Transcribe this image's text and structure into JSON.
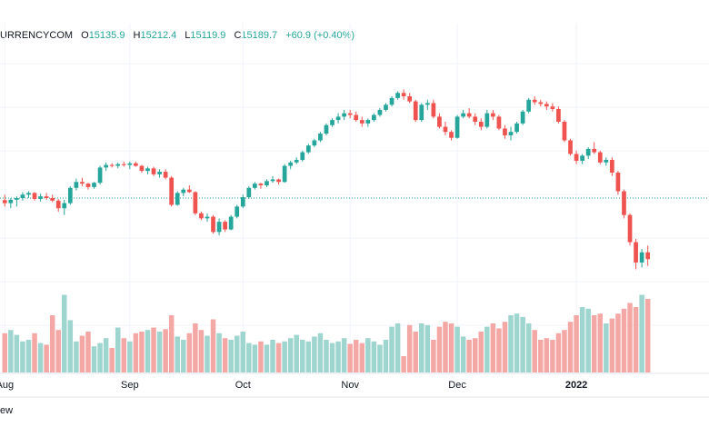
{
  "legend": {
    "symbol": "URRENCYCOM",
    "open_key": "O",
    "open": "15135.9",
    "high_key": "H",
    "high": "15212.4",
    "low_key": "L",
    "low": "15119.9",
    "close_key": "C",
    "close": "15189.7",
    "change": "+60.9 (+0.40%)"
  },
  "footer_text": "ew",
  "colors": {
    "up": "#26a69a",
    "down": "#ef5350",
    "vol_up": "#9fd5cf",
    "vol_down": "#f4a8a6",
    "grid": "#f0f3fa",
    "ref_line": "#26a69a"
  },
  "chart_data": {
    "type": "candlestick",
    "xlabel": "",
    "ylabel": "",
    "x_ticks": [
      {
        "label": "Aug",
        "index": 0,
        "bold": false
      },
      {
        "label": "Sep",
        "index": 21,
        "bold": false
      },
      {
        "label": "Oct",
        "index": 40,
        "bold": false
      },
      {
        "label": "Nov",
        "index": 58,
        "bold": false
      },
      {
        "label": "Dec",
        "index": 76,
        "bold": false
      },
      {
        "label": "2022",
        "index": 96,
        "bold": true
      }
    ],
    "reference_price": 15000,
    "ylim": [
      14400,
      15900
    ],
    "volume_max": 100,
    "candles": [
      [
        14988,
        15020,
        14950,
        14970,
        48
      ],
      [
        14970,
        15000,
        14940,
        14990,
        52
      ],
      [
        14990,
        15010,
        14950,
        15000,
        46
      ],
      [
        15000,
        15035,
        14985,
        15020,
        38
      ],
      [
        15020,
        15040,
        15000,
        15030,
        40
      ],
      [
        15030,
        15035,
        14985,
        14995,
        48
      ],
      [
        14995,
        15025,
        14980,
        15010,
        36
      ],
      [
        15010,
        15030,
        14990,
        15000,
        34
      ],
      [
        15000,
        15020,
        14975,
        14985,
        70
      ],
      [
        14985,
        14995,
        14920,
        14940,
        52
      ],
      [
        14940,
        14990,
        14900,
        14970,
        95
      ],
      [
        14970,
        15070,
        14960,
        15060,
        64
      ],
      [
        15060,
        15115,
        15045,
        15095,
        38
      ],
      [
        15095,
        15120,
        15070,
        15085,
        45
      ],
      [
        15085,
        15090,
        15050,
        15065,
        50
      ],
      [
        15065,
        15095,
        15055,
        15090,
        32
      ],
      [
        15090,
        15190,
        15080,
        15180,
        36
      ],
      [
        15180,
        15210,
        15160,
        15195,
        42
      ],
      [
        15195,
        15205,
        15180,
        15190,
        30
      ],
      [
        15190,
        15210,
        15175,
        15200,
        55
      ],
      [
        15200,
        15215,
        15185,
        15195,
        42
      ],
      [
        15195,
        15215,
        15170,
        15205,
        38
      ],
      [
        15205,
        15215,
        15185,
        15190,
        48
      ],
      [
        15190,
        15195,
        15150,
        15160,
        50
      ],
      [
        15160,
        15185,
        15140,
        15175,
        52
      ],
      [
        15175,
        15185,
        15130,
        15140,
        55
      ],
      [
        15140,
        15170,
        15120,
        15155,
        50
      ],
      [
        15155,
        15170,
        15110,
        15120,
        53
      ],
      [
        15120,
        15130,
        14950,
        14960,
        70
      ],
      [
        14960,
        15040,
        14955,
        15030,
        44
      ],
      [
        15030,
        15060,
        15010,
        15050,
        40
      ],
      [
        15050,
        15075,
        15030,
        15035,
        48
      ],
      [
        15035,
        15040,
        14900,
        14910,
        60
      ],
      [
        14910,
        14920,
        14870,
        14880,
        52
      ],
      [
        14880,
        14910,
        14860,
        14890,
        45
      ],
      [
        14890,
        14900,
        14790,
        14800,
        65
      ],
      [
        14800,
        14880,
        14780,
        14860,
        48
      ],
      [
        14860,
        14870,
        14800,
        14815,
        42
      ],
      [
        14815,
        14900,
        14810,
        14890,
        40
      ],
      [
        14890,
        14960,
        14880,
        14950,
        45
      ],
      [
        14950,
        15020,
        14940,
        15005,
        50
      ],
      [
        15005,
        15070,
        14995,
        15060,
        36
      ],
      [
        15060,
        15095,
        15050,
        15085,
        34
      ],
      [
        15085,
        15090,
        15055,
        15075,
        38
      ],
      [
        15075,
        15110,
        15065,
        15100,
        34
      ],
      [
        15100,
        15130,
        15090,
        15110,
        40
      ],
      [
        15110,
        15115,
        15080,
        15095,
        36
      ],
      [
        15095,
        15200,
        15090,
        15190,
        38
      ],
      [
        15190,
        15220,
        15170,
        15210,
        42
      ],
      [
        15210,
        15240,
        15200,
        15225,
        46
      ],
      [
        15225,
        15280,
        15215,
        15270,
        40
      ],
      [
        15270,
        15320,
        15260,
        15310,
        38
      ],
      [
        15310,
        15350,
        15300,
        15340,
        44
      ],
      [
        15340,
        15390,
        15330,
        15380,
        48
      ],
      [
        15380,
        15440,
        15370,
        15430,
        40
      ],
      [
        15430,
        15470,
        15420,
        15460,
        36
      ],
      [
        15460,
        15500,
        15440,
        15480,
        38
      ],
      [
        15480,
        15520,
        15460,
        15500,
        42
      ],
      [
        15500,
        15520,
        15470,
        15490,
        35
      ],
      [
        15490,
        15510,
        15450,
        15460,
        40
      ],
      [
        15460,
        15480,
        15420,
        15440,
        36
      ],
      [
        15440,
        15470,
        15420,
        15460,
        42
      ],
      [
        15460,
        15500,
        15450,
        15490,
        38
      ],
      [
        15490,
        15530,
        15480,
        15520,
        34
      ],
      [
        15520,
        15560,
        15510,
        15550,
        40
      ],
      [
        15550,
        15600,
        15540,
        15590,
        56
      ],
      [
        15590,
        15630,
        15580,
        15620,
        60
      ],
      [
        15620,
        15640,
        15580,
        15600,
        20
      ],
      [
        15600,
        15620,
        15560,
        15570,
        58
      ],
      [
        15570,
        15580,
        15450,
        15460,
        50
      ],
      [
        15460,
        15560,
        15450,
        15550,
        60
      ],
      [
        15550,
        15580,
        15520,
        15560,
        58
      ],
      [
        15560,
        15580,
        15470,
        15480,
        40
      ],
      [
        15480,
        15500,
        15410,
        15420,
        56
      ],
      [
        15420,
        15450,
        15370,
        15390,
        62
      ],
      [
        15390,
        15400,
        15340,
        15355,
        60
      ],
      [
        15355,
        15490,
        15350,
        15480,
        56
      ],
      [
        15480,
        15520,
        15470,
        15500,
        44
      ],
      [
        15500,
        15530,
        15470,
        15480,
        40
      ],
      [
        15480,
        15500,
        15430,
        15450,
        42
      ],
      [
        15450,
        15470,
        15400,
        15420,
        50
      ],
      [
        15420,
        15520,
        15410,
        15500,
        56
      ],
      [
        15500,
        15520,
        15460,
        15480,
        60
      ],
      [
        15480,
        15490,
        15400,
        15410,
        54
      ],
      [
        15410,
        15430,
        15350,
        15370,
        62
      ],
      [
        15370,
        15420,
        15340,
        15390,
        70
      ],
      [
        15390,
        15450,
        15380,
        15440,
        72
      ],
      [
        15440,
        15520,
        15430,
        15510,
        68
      ],
      [
        15510,
        15590,
        15500,
        15580,
        60
      ],
      [
        15580,
        15600,
        15550,
        15565,
        52
      ],
      [
        15565,
        15580,
        15540,
        15555,
        40
      ],
      [
        15555,
        15570,
        15520,
        15540,
        42
      ],
      [
        15540,
        15560,
        15510,
        15525,
        40
      ],
      [
        15525,
        15540,
        15440,
        15450,
        48
      ],
      [
        15450,
        15460,
        15330,
        15340,
        52
      ],
      [
        15340,
        15350,
        15250,
        15260,
        62
      ],
      [
        15260,
        15280,
        15200,
        15220,
        70
      ],
      [
        15220,
        15260,
        15200,
        15250,
        80
      ],
      [
        15250,
        15300,
        15230,
        15290,
        78
      ],
      [
        15290,
        15330,
        15260,
        15270,
        70
      ],
      [
        15270,
        15280,
        15200,
        15210,
        72
      ],
      [
        15210,
        15240,
        15190,
        15225,
        60
      ],
      [
        15225,
        15240,
        15130,
        15150,
        66
      ],
      [
        15150,
        15160,
        15020,
        15040,
        72
      ],
      [
        15040,
        15050,
        14880,
        14900,
        78
      ],
      [
        14900,
        14910,
        14720,
        14740,
        85
      ],
      [
        14740,
        14760,
        14580,
        14620,
        80
      ],
      [
        14620,
        14700,
        14590,
        14680,
        95
      ],
      [
        14680,
        14720,
        14600,
        14640,
        90
      ]
    ]
  }
}
